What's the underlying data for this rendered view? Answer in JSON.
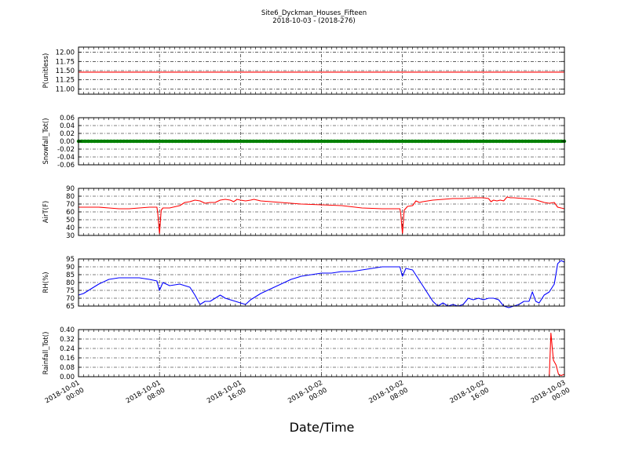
{
  "chart_data": {
    "title": "Site6_Dyckman_Houses_Fifteen",
    "subtitle": "2018-10-03 - (2018-276)",
    "xlabel": "Date/Time",
    "x_range": [
      "2018-10-01 00:00",
      "2018-10-03 00:00"
    ],
    "x_ticks": [
      {
        "t": "2018-10-01 00:00",
        "line1": "2018-10-01",
        "line2": "00:00"
      },
      {
        "t": "2018-10-01 08:00",
        "line1": "2018-10-01",
        "line2": "08:00"
      },
      {
        "t": "2018-10-01 16:00",
        "line1": "2018-10-01",
        "line2": "16:00"
      },
      {
        "t": "2018-10-02 00:00",
        "line1": "2018-10-02",
        "line2": "00:00"
      },
      {
        "t": "2018-10-02 08:00",
        "line1": "2018-10-02",
        "line2": "08:00"
      },
      {
        "t": "2018-10-02 16:00",
        "line1": "2018-10-02",
        "line2": "16:00"
      },
      {
        "t": "2018-10-03 00:00",
        "line1": "2018-10-03",
        "line2": "00:00"
      }
    ],
    "grid": true,
    "panels": [
      {
        "type": "line",
        "ylabel": "P(unitless)",
        "ylim": [
          10.86,
          12.14
        ],
        "yticks": [
          "11.00",
          "11.25",
          "11.50",
          "11.75",
          "12.00"
        ],
        "color": "#ff0000",
        "points": [
          [
            "2018-10-01 00:00",
            11.46
          ],
          [
            "2018-10-03 00:00",
            11.46
          ]
        ]
      },
      {
        "type": "scatter-line",
        "ylabel": "Snowfall_Tot()",
        "ylim": [
          -0.06,
          0.06
        ],
        "yticks": [
          "-0.06",
          "-0.04",
          "-0.02",
          "0.00",
          "0.02",
          "0.04",
          "0.06"
        ],
        "color": "#008000",
        "points": [
          [
            "2018-10-01 00:00",
            0.0
          ],
          [
            "2018-10-03 00:00",
            0.0
          ]
        ]
      },
      {
        "type": "line",
        "ylabel": "AirT(F)",
        "ylim": [
          30,
          90
        ],
        "yticks": [
          "30",
          "40",
          "50",
          "60",
          "70",
          "80",
          "90"
        ],
        "color": "#ff0000",
        "points": [
          [
            "2018-10-01 00:00",
            66
          ],
          [
            "2018-10-01 01:00",
            66
          ],
          [
            "2018-10-01 02:00",
            66
          ],
          [
            "2018-10-01 03:00",
            65
          ],
          [
            "2018-10-01 04:00",
            64
          ],
          [
            "2018-10-01 05:00",
            64
          ],
          [
            "2018-10-01 06:00",
            65
          ],
          [
            "2018-10-01 07:00",
            66
          ],
          [
            "2018-10-01 07:45",
            66
          ],
          [
            "2018-10-01 07:50",
            58
          ],
          [
            "2018-10-01 08:00",
            32
          ],
          [
            "2018-10-01 08:10",
            62
          ],
          [
            "2018-10-01 08:20",
            65
          ],
          [
            "2018-10-01 09:00",
            65
          ],
          [
            "2018-10-01 10:00",
            68
          ],
          [
            "2018-10-01 10:30",
            72
          ],
          [
            "2018-10-01 11:00",
            73
          ],
          [
            "2018-10-01 11:30",
            75
          ],
          [
            "2018-10-01 12:00",
            74
          ],
          [
            "2018-10-01 12:30",
            71
          ],
          [
            "2018-10-01 13:00",
            72
          ],
          [
            "2018-10-01 13:30",
            72
          ],
          [
            "2018-10-01 14:00",
            75
          ],
          [
            "2018-10-01 14:30",
            76
          ],
          [
            "2018-10-01 15:00",
            75
          ],
          [
            "2018-10-01 15:20",
            73
          ],
          [
            "2018-10-01 15:40",
            76
          ],
          [
            "2018-10-01 16:00",
            75
          ],
          [
            "2018-10-01 16:30",
            74
          ],
          [
            "2018-10-01 17:00",
            75
          ],
          [
            "2018-10-01 17:20",
            76
          ],
          [
            "2018-10-01 18:00",
            74
          ],
          [
            "2018-10-01 20:00",
            72
          ],
          [
            "2018-10-01 22:00",
            70
          ],
          [
            "2018-10-02 00:00",
            69
          ],
          [
            "2018-10-02 02:00",
            68
          ],
          [
            "2018-10-02 04:00",
            65
          ],
          [
            "2018-10-02 06:00",
            64
          ],
          [
            "2018-10-02 07:45",
            64
          ],
          [
            "2018-10-02 07:50",
            58
          ],
          [
            "2018-10-02 08:00",
            32
          ],
          [
            "2018-10-02 08:10",
            62
          ],
          [
            "2018-10-02 08:30",
            67
          ],
          [
            "2018-10-02 09:00",
            68
          ],
          [
            "2018-10-02 09:20",
            74
          ],
          [
            "2018-10-02 09:40",
            72
          ],
          [
            "2018-10-02 10:00",
            73
          ],
          [
            "2018-10-02 11:00",
            75
          ],
          [
            "2018-10-02 12:00",
            76
          ],
          [
            "2018-10-02 13:00",
            77
          ],
          [
            "2018-10-02 14:00",
            77
          ],
          [
            "2018-10-02 15:00",
            78
          ],
          [
            "2018-10-02 16:00",
            78
          ],
          [
            "2018-10-02 16:30",
            77
          ],
          [
            "2018-10-02 16:45",
            73
          ],
          [
            "2018-10-02 17:00",
            75
          ],
          [
            "2018-10-02 17:20",
            74
          ],
          [
            "2018-10-02 17:40",
            75
          ],
          [
            "2018-10-02 18:00",
            74
          ],
          [
            "2018-10-02 18:20",
            79
          ],
          [
            "2018-10-02 18:40",
            78
          ],
          [
            "2018-10-02 19:00",
            78
          ],
          [
            "2018-10-02 20:00",
            77
          ],
          [
            "2018-10-02 21:00",
            76
          ],
          [
            "2018-10-02 22:00",
            72
          ],
          [
            "2018-10-02 22:30",
            71
          ],
          [
            "2018-10-02 23:00",
            72
          ],
          [
            "2018-10-02 23:20",
            66
          ],
          [
            "2018-10-02 23:40",
            65
          ],
          [
            "2018-10-03 00:00",
            64
          ]
        ]
      },
      {
        "type": "line",
        "ylabel": "RH(%)",
        "ylim": [
          65,
          95
        ],
        "yticks": [
          "65",
          "70",
          "75",
          "80",
          "85",
          "90",
          "95"
        ],
        "color": "#0000ff",
        "points": [
          [
            "2018-10-01 00:00",
            72
          ],
          [
            "2018-10-01 00:30",
            73
          ],
          [
            "2018-10-01 01:00",
            75
          ],
          [
            "2018-10-01 01:30",
            77
          ],
          [
            "2018-10-01 02:00",
            79
          ],
          [
            "2018-10-01 03:00",
            82
          ],
          [
            "2018-10-01 04:00",
            83
          ],
          [
            "2018-10-01 05:00",
            83
          ],
          [
            "2018-10-01 06:00",
            83
          ],
          [
            "2018-10-01 07:00",
            82
          ],
          [
            "2018-10-01 07:45",
            81
          ],
          [
            "2018-10-01 08:00",
            75
          ],
          [
            "2018-10-01 08:20",
            80
          ],
          [
            "2018-10-01 09:00",
            78
          ],
          [
            "2018-10-01 10:00",
            79
          ],
          [
            "2018-10-01 11:00",
            77
          ],
          [
            "2018-10-01 11:30",
            72
          ],
          [
            "2018-10-01 12:00",
            66
          ],
          [
            "2018-10-01 12:30",
            68
          ],
          [
            "2018-10-01 13:00",
            68
          ],
          [
            "2018-10-01 13:30",
            70
          ],
          [
            "2018-10-01 14:00",
            72
          ],
          [
            "2018-10-01 14:30",
            70
          ],
          [
            "2018-10-01 15:00",
            69
          ],
          [
            "2018-10-01 15:30",
            68
          ],
          [
            "2018-10-01 16:00",
            67
          ],
          [
            "2018-10-01 16:30",
            66
          ],
          [
            "2018-10-01 17:00",
            69
          ],
          [
            "2018-10-01 17:30",
            71
          ],
          [
            "2018-10-01 18:00",
            73
          ],
          [
            "2018-10-01 19:00",
            76
          ],
          [
            "2018-10-01 20:00",
            79
          ],
          [
            "2018-10-01 21:00",
            82
          ],
          [
            "2018-10-01 22:00",
            84
          ],
          [
            "2018-10-01 23:00",
            85
          ],
          [
            "2018-10-02 00:00",
            86
          ],
          [
            "2018-10-02 01:00",
            86
          ],
          [
            "2018-10-02 02:00",
            87
          ],
          [
            "2018-10-02 03:00",
            87
          ],
          [
            "2018-10-02 04:00",
            88
          ],
          [
            "2018-10-02 05:00",
            89
          ],
          [
            "2018-10-02 06:00",
            90
          ],
          [
            "2018-10-02 07:00",
            90
          ],
          [
            "2018-10-02 07:45",
            90
          ],
          [
            "2018-10-02 08:00",
            84
          ],
          [
            "2018-10-02 08:20",
            89
          ],
          [
            "2018-10-02 09:00",
            88
          ],
          [
            "2018-10-02 10:00",
            78
          ],
          [
            "2018-10-02 11:00",
            68
          ],
          [
            "2018-10-02 11:30",
            65
          ],
          [
            "2018-10-02 12:00",
            67
          ],
          [
            "2018-10-02 12:30",
            65
          ],
          [
            "2018-10-02 13:00",
            66
          ],
          [
            "2018-10-02 13:30",
            65
          ],
          [
            "2018-10-02 14:00",
            66
          ],
          [
            "2018-10-02 14:30",
            70
          ],
          [
            "2018-10-02 15:00",
            69
          ],
          [
            "2018-10-02 15:30",
            70
          ],
          [
            "2018-10-02 16:00",
            69
          ],
          [
            "2018-10-02 16:30",
            70
          ],
          [
            "2018-10-02 17:00",
            70
          ],
          [
            "2018-10-02 17:30",
            69
          ],
          [
            "2018-10-02 18:00",
            65
          ],
          [
            "2018-10-02 18:30",
            64
          ],
          [
            "2018-10-02 19:00",
            65
          ],
          [
            "2018-10-02 19:30",
            66
          ],
          [
            "2018-10-02 20:00",
            68
          ],
          [
            "2018-10-02 20:30",
            68
          ],
          [
            "2018-10-02 20:50",
            74
          ],
          [
            "2018-10-02 21:10",
            68
          ],
          [
            "2018-10-02 21:30",
            67
          ],
          [
            "2018-10-02 22:00",
            72
          ],
          [
            "2018-10-02 22:30",
            74
          ],
          [
            "2018-10-02 23:00",
            79
          ],
          [
            "2018-10-02 23:20",
            92
          ],
          [
            "2018-10-02 23:40",
            94
          ],
          [
            "2018-10-03 00:00",
            93
          ]
        ]
      },
      {
        "type": "line",
        "ylabel": "Rainfall_Tot()",
        "ylim": [
          0.0,
          0.4
        ],
        "yticks": [
          "0.00",
          "0.08",
          "0.16",
          "0.24",
          "0.32",
          "0.40"
        ],
        "color": "#ff0000",
        "points": [
          [
            "2018-10-01 00:00",
            0.0
          ],
          [
            "2018-10-02 22:30",
            0.0
          ],
          [
            "2018-10-02 22:40",
            0.37
          ],
          [
            "2018-10-02 22:55",
            0.14
          ],
          [
            "2018-10-02 23:10",
            0.1
          ],
          [
            "2018-10-02 23:25",
            0.02
          ],
          [
            "2018-10-02 23:40",
            0.01
          ],
          [
            "2018-10-03 00:00",
            0.02
          ]
        ]
      }
    ]
  }
}
